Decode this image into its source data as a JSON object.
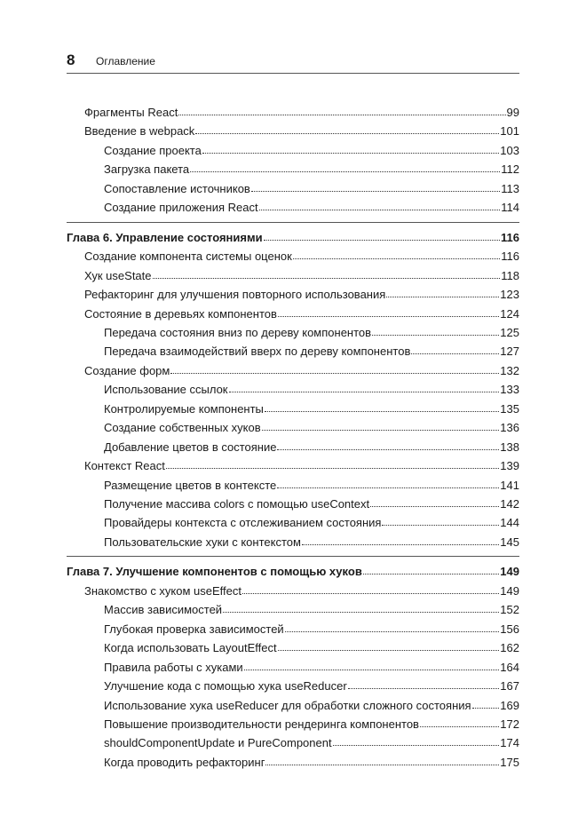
{
  "header": {
    "page_number": "8",
    "title": "Оглавление"
  },
  "sections": [
    {
      "entries": [
        {
          "title": "Фрагменты React",
          "page": "99"
        },
        {
          "title": "Введение в webpack",
          "page": "101",
          "children": [
            {
              "title": "Создание проекта",
              "page": "103"
            },
            {
              "title": "Загрузка пакета",
              "page": "112"
            },
            {
              "title": "Сопоставление источников",
              "page": "113"
            },
            {
              "title": "Создание приложения React",
              "page": "114"
            }
          ]
        }
      ]
    },
    {
      "title": "Глава 6. Управление состояниями",
      "page": "116",
      "entries": [
        {
          "title": "Создание компонента системы оценок",
          "page": "116"
        },
        {
          "title": "Хук useState",
          "page": "118"
        },
        {
          "title": "Рефакторинг для улучшения повторного использования",
          "page": "123"
        },
        {
          "title": "Состояние в деревьях компонентов",
          "page": "124",
          "children": [
            {
              "title": "Передача состояния вниз по дереву компонентов",
              "page": "125"
            },
            {
              "title": "Передача взаимодействий вверх по дереву компонентов",
              "page": "127"
            }
          ]
        },
        {
          "title": "Создание форм",
          "page": "132",
          "children": [
            {
              "title": "Использование ссылок",
              "page": "133"
            },
            {
              "title": "Контролируемые компоненты",
              "page": "135"
            },
            {
              "title": "Создание собственных хуков",
              "page": "136"
            },
            {
              "title": "Добавление цветов в состояние",
              "page": "138"
            }
          ]
        },
        {
          "title": "Контекст React",
          "page": "139",
          "children": [
            {
              "title": "Размещение цветов в контексте",
              "page": "141"
            },
            {
              "title": "Получение массива colors с помощью useContext",
              "page": "142"
            },
            {
              "title": "Провайдеры контекста с отслеживанием состояния",
              "page": "144"
            },
            {
              "title": "Пользовательские хуки с контекстом",
              "page": "145"
            }
          ]
        }
      ]
    },
    {
      "title": "Глава 7. Улучшение компонентов с помощью хуков",
      "page": "149",
      "entries": [
        {
          "title": "Знакомство с хуком useEffect",
          "page": "149",
          "children": [
            {
              "title": "Массив зависимостей",
              "page": "152"
            },
            {
              "title": "Глубокая проверка зависимостей",
              "page": "156"
            },
            {
              "title": "Когда использовать LayoutEffect",
              "page": "162"
            },
            {
              "title": "Правила работы с хуками",
              "page": "164"
            },
            {
              "title": "Улучшение кода с помощью хука useReducer",
              "page": "167"
            },
            {
              "title": "Использование хука useReducer для обработки сложного состояния",
              "page": "169"
            },
            {
              "title": "Повышение производительности рендеринга компонентов",
              "page": "172"
            },
            {
              "title": "shouldComponentUpdate и PureComponent",
              "page": "174"
            },
            {
              "title": "Когда проводить рефакторинг",
              "page": "175"
            }
          ]
        }
      ]
    }
  ]
}
